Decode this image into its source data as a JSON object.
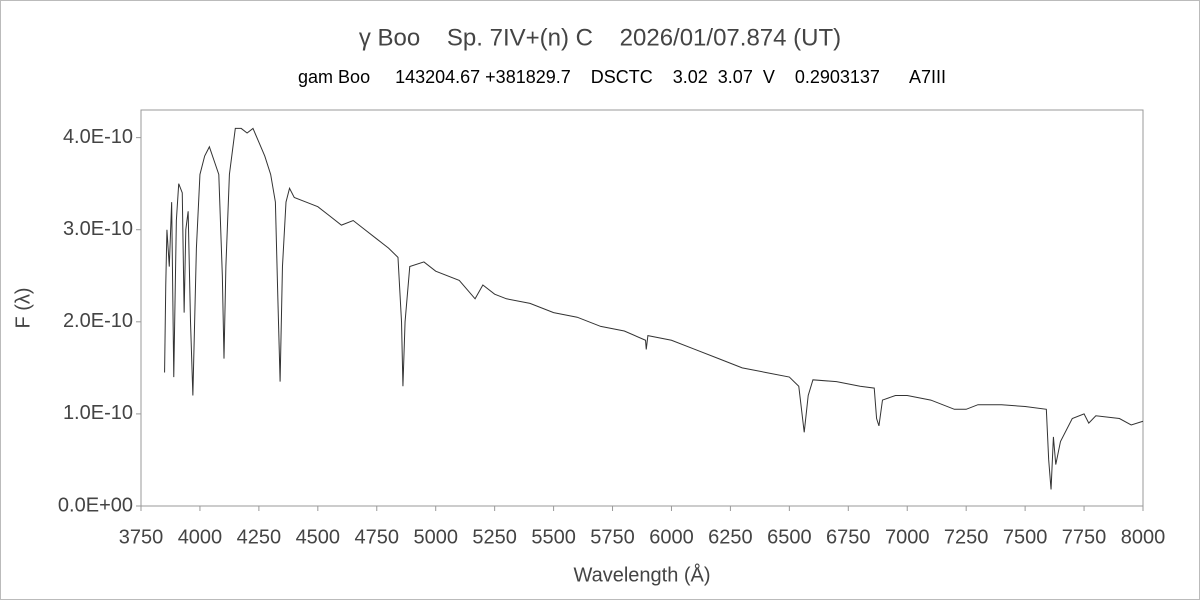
{
  "chart_data": {
    "type": "line",
    "title": "γ Boo    Sp. 7IV+(n) C    2026/01/07.874 (UT)",
    "subtitle": "gam Boo     143204.67 +381829.7    DSCTC    3.02  3.07  V    0.2903137      A7III",
    "x_label": "Wavelength (Å)",
    "y_label": "F (λ)",
    "xlim": [
      3750,
      8000
    ],
    "xticks": [
      3750,
      4000,
      4250,
      4500,
      4750,
      5000,
      5250,
      5500,
      5750,
      6000,
      6250,
      6500,
      6750,
      7000,
      7250,
      7500,
      7750,
      8000
    ],
    "ylim": [
      0,
      4.3e-10
    ],
    "yticks": [
      {
        "value": 0,
        "label": "0.0E+00"
      },
      {
        "value": 1e-10,
        "label": "1.0E-10"
      },
      {
        "value": 2e-10,
        "label": "2.0E-10"
      },
      {
        "value": 3e-10,
        "label": "3.0E-10"
      },
      {
        "value": 4e-10,
        "label": "4.0E-10"
      }
    ],
    "series": [
      {
        "color": "#333333",
        "x": [
          3850,
          3855,
          3860,
          3870,
          3880,
          3889,
          3900,
          3910,
          3925,
          3933,
          3940,
          3950,
          3960,
          3970,
          3985,
          4000,
          4020,
          4040,
          4060,
          4080,
          4095,
          4102,
          4110,
          4125,
          4150,
          4175,
          4200,
          4225,
          4250,
          4275,
          4300,
          4320,
          4330,
          4340,
          4350,
          4365,
          4380,
          4400,
          4450,
          4500,
          4550,
          4600,
          4650,
          4700,
          4750,
          4800,
          4840,
          4855,
          4861,
          4870,
          4890,
          4950,
          5000,
          5100,
          5167,
          5200,
          5250,
          5300,
          5400,
          5500,
          5600,
          5700,
          5800,
          5890,
          5893,
          5900,
          6000,
          6100,
          6200,
          6300,
          6400,
          6500,
          6540,
          6563,
          6580,
          6600,
          6700,
          6800,
          6860,
          6870,
          6880,
          6895,
          6950,
          7000,
          7100,
          7200,
          7250,
          7300,
          7400,
          7500,
          7590,
          7600,
          7610,
          7620,
          7630,
          7650,
          7700,
          7750,
          7770,
          7800,
          7900,
          7950,
          8000
        ],
        "values": [
          1.45e-10,
          2.4e-10,
          3e-10,
          2.6e-10,
          3.3e-10,
          1.4e-10,
          3.1e-10,
          3.5e-10,
          3.4e-10,
          2.1e-10,
          3e-10,
          3.2e-10,
          2e-10,
          1.2e-10,
          2.8e-10,
          3.6e-10,
          3.8e-10,
          3.9e-10,
          3.75e-10,
          3.6e-10,
          2.5e-10,
          1.6e-10,
          2.6e-10,
          3.6e-10,
          4.1e-10,
          4.1e-10,
          4.05e-10,
          4.1e-10,
          3.95e-10,
          3.8e-10,
          3.6e-10,
          3.3e-10,
          2.3e-10,
          1.35e-10,
          2.6e-10,
          3.3e-10,
          3.45e-10,
          3.35e-10,
          3.3e-10,
          3.25e-10,
          3.15e-10,
          3.05e-10,
          3.1e-10,
          3e-10,
          2.9e-10,
          2.8e-10,
          2.7e-10,
          2e-10,
          1.3e-10,
          2e-10,
          2.6e-10,
          2.65e-10,
          2.55e-10,
          2.45e-10,
          2.25e-10,
          2.4e-10,
          2.3e-10,
          2.25e-10,
          2.2e-10,
          2.1e-10,
          2.05e-10,
          1.95e-10,
          1.9e-10,
          1.8e-10,
          1.7e-10,
          1.85e-10,
          1.8e-10,
          1.7e-10,
          1.6e-10,
          1.5e-10,
          1.45e-10,
          1.4e-10,
          1.3e-10,
          8e-11,
          1.2e-10,
          1.37e-10,
          1.35e-10,
          1.3e-10,
          1.28e-10,
          9.5e-11,
          8.7e-11,
          1.15e-10,
          1.2e-10,
          1.2e-10,
          1.15e-10,
          1.05e-10,
          1.05e-10,
          1.1e-10,
          1.1e-10,
          1.08e-10,
          1.05e-10,
          5e-11,
          1.8e-11,
          7.5e-11,
          4.5e-11,
          7e-11,
          9.5e-11,
          1e-10,
          9e-11,
          9.8e-11,
          9.5e-11,
          8.8e-11,
          9.2e-11
        ]
      }
    ]
  }
}
